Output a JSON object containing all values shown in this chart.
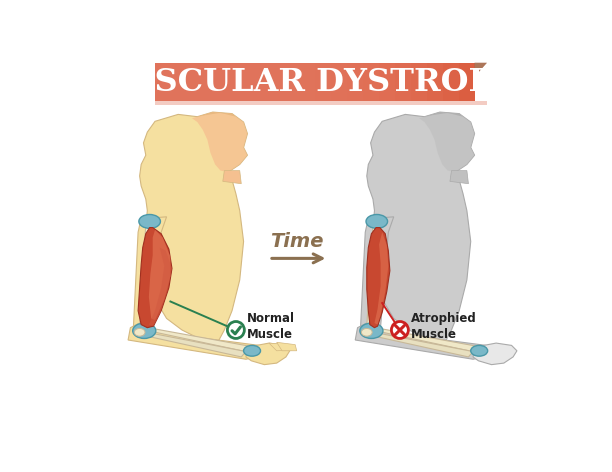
{
  "title": "MUSCULAR DYSTROPHY",
  "title_bg_color": "#d9583b",
  "title_bg_light": "#e8816a",
  "title_text_color": "#ffffff",
  "bg_color": "#ffffff",
  "healthy_body_warm": "#f5e0a0",
  "healthy_body_top": "#f5c090",
  "healthy_outline": "#d4b880",
  "gray_body": "#cccccc",
  "gray_outline": "#aaaaaa",
  "bone_fill": "#f0e8c8",
  "bone_outline": "#c8b898",
  "joint_fill": "#7ab8c8",
  "joint_outline": "#4a98a8",
  "muscle_main": "#c84830",
  "muscle_highlight": "#e07050",
  "muscle_shadow": "#a03020",
  "time_color": "#8b7050",
  "green_label": "#2a8050",
  "red_label": "#cc2020",
  "label_text": "#222222",
  "normal_label": "Normal\nMuscle",
  "atrophied_label": "Atrophied\nMuscle",
  "time_label": "Time"
}
